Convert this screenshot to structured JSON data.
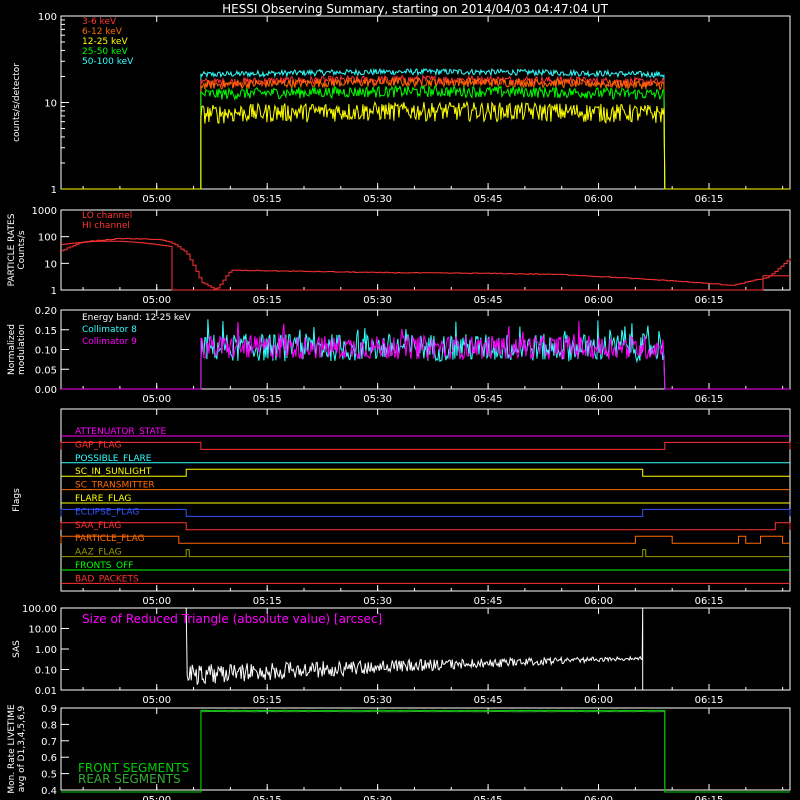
{
  "title": "HESSI Observing Summary, starting on 2014/04/03 04:47:04 UT",
  "time_ticks": [
    "05:00",
    "05:15",
    "05:30",
    "05:45",
    "06:00",
    "06:15"
  ],
  "colors": {
    "bg": "#000000",
    "axis": "#ffffff",
    "e3_6": "#ff3333",
    "e6_12": "#ff6a00",
    "e12_25": "#ffff00",
    "e25_50": "#00ff00",
    "e50_100": "#33ffff",
    "lo": "#ff3333",
    "hi": "#ff3333",
    "coll8": "#33ffff",
    "coll9": "#ff00ff",
    "sas": "#ffffff",
    "sas_label": "#ff00ff",
    "front": "#00cc00",
    "rear": "#33aa33"
  },
  "chart_data": [
    {
      "id": "count-rates",
      "type": "line",
      "ylabel": "counts/s/detector",
      "yscale": "log",
      "ylim": [
        1,
        100
      ],
      "y_ticks": [
        "1",
        "10",
        "100"
      ],
      "legend": [
        "3-6 keV",
        "6-12 keV",
        "12-25 keV",
        "25-50 keV",
        "50-100 keV"
      ],
      "series": [
        {
          "name": "3-6 keV",
          "level": 17,
          "noise": 0.12
        },
        {
          "name": "6-12 keV",
          "level": 16,
          "noise": 0.12
        },
        {
          "name": "12-25 keV",
          "level": 7.5,
          "noise": 0.25
        },
        {
          "name": "25-50 keV",
          "level": 12.5,
          "noise": 0.15
        },
        {
          "name": "50-100 keV",
          "level": 21,
          "noise": 0.08
        }
      ],
      "observation_start": "05:06",
      "observation_end": "06:09"
    },
    {
      "id": "particle-rates",
      "type": "line",
      "ylabel": "PARTICLE RATES Counts/s",
      "yscale": "log",
      "ylim": [
        1,
        1000
      ],
      "y_ticks": [
        "1",
        "10",
        "100",
        "1000"
      ],
      "legend": [
        "LO channel",
        "HI channel"
      ],
      "lo_points": [
        [
          "04:47",
          30
        ],
        [
          "04:50",
          65
        ],
        [
          "04:55",
          85
        ],
        [
          "05:00",
          80
        ],
        [
          "05:02",
          60
        ],
        [
          "05:04",
          25
        ],
        [
          "05:05",
          8
        ],
        [
          "05:06",
          2
        ],
        [
          "05:08",
          1
        ],
        [
          "05:10",
          5.5
        ],
        [
          "05:20",
          5
        ],
        [
          "05:30",
          4.5
        ],
        [
          "05:45",
          4.2
        ],
        [
          "05:55",
          3.8
        ],
        [
          "06:00",
          3.2
        ],
        [
          "06:10",
          2.2
        ],
        [
          "06:18",
          1.5
        ],
        [
          "06:23",
          3
        ],
        [
          "06:26",
          15
        ]
      ],
      "hi_value": 1
    },
    {
      "id": "modulation",
      "type": "line",
      "ylabel": "Normalized modulation",
      "ylim": [
        0,
        0.2
      ],
      "y_ticks": [
        "0.00",
        "0.05",
        "0.10",
        "0.15",
        "0.20"
      ],
      "legend_title": "Energy band: 12-25 keV",
      "legend": [
        "Collimator 8",
        "Collimator 9"
      ],
      "mean": 0.105,
      "observation_start": "05:06",
      "observation_end": "06:09"
    },
    {
      "id": "flags",
      "type": "line",
      "ylabel": "Flags",
      "flags": [
        {
          "name": "ATTENUATOR_STATE",
          "color": "#ff00ff",
          "segments": []
        },
        {
          "name": "GAP_FLAG",
          "color": "#ff3333",
          "segments": [
            [
              "04:47",
              "05:06"
            ],
            [
              "06:09",
              "06:26"
            ]
          ]
        },
        {
          "name": "POSSIBLE_FLARE",
          "color": "#33ffff",
          "segments": []
        },
        {
          "name": "SC_IN_SUNLIGHT",
          "color": "#ffff00",
          "segments": [
            [
              "05:04",
              "06:06"
            ]
          ]
        },
        {
          "name": "SC_TRANSMITTER",
          "color": "#ff6a00",
          "segments": []
        },
        {
          "name": "FLARE_FLAG",
          "color": "#ffff00",
          "segments": []
        },
        {
          "name": "ECLIPSE_FLAG",
          "color": "#3355ff",
          "segments": [
            [
              "04:47",
              "05:04"
            ],
            [
              "06:06",
              "06:26"
            ]
          ]
        },
        {
          "name": "SAA_FLAG",
          "color": "#ff3333",
          "segments": [
            [
              "04:47",
              "05:04"
            ],
            [
              "06:24",
              "06:26"
            ]
          ]
        },
        {
          "name": "PARTICLE_FLAG",
          "color": "#ff6a00",
          "segments": [
            [
              "04:47",
              "05:03"
            ],
            [
              "06:05",
              "06:10"
            ],
            [
              "06:19",
              "06:20"
            ],
            [
              "06:22",
              "06:25"
            ]
          ]
        },
        {
          "name": "AAZ_FLAG",
          "color": "#999900",
          "segments": [
            [
              "05:04",
              "05:04"
            ],
            [
              "06:06",
              "06:06"
            ]
          ]
        },
        {
          "name": "FRONTS_OFF",
          "color": "#00ff00",
          "segments": []
        },
        {
          "name": "BAD_PACKETS",
          "color": "#ff3333",
          "segments": []
        }
      ]
    },
    {
      "id": "sas",
      "type": "line",
      "ylabel": "SAS",
      "yscale": "log",
      "ylim": [
        0.01,
        100
      ],
      "y_ticks": [
        "0.01",
        "0.10",
        "1.00",
        "10.00",
        "100.00"
      ],
      "label": "Size of Reduced Triangle (absolute value) [arcsec]",
      "sunlight_start": "05:04",
      "sunlight_end": "06:06"
    },
    {
      "id": "livetime",
      "type": "line",
      "ylabel": "Mon. Rate LIVETIME avg of D1,3,4,5,6,9",
      "ylim": [
        0.4,
        0.9
      ],
      "y_ticks": [
        "0.4",
        "0.5",
        "0.6",
        "0.7",
        "0.8",
        "0.9"
      ],
      "legend": [
        "FRONT SEGMENTS",
        "REAR SEGMENTS"
      ],
      "front_value": 0.885,
      "rear_value": 0.878,
      "observation_start": "05:06",
      "observation_end": "06:09"
    }
  ]
}
